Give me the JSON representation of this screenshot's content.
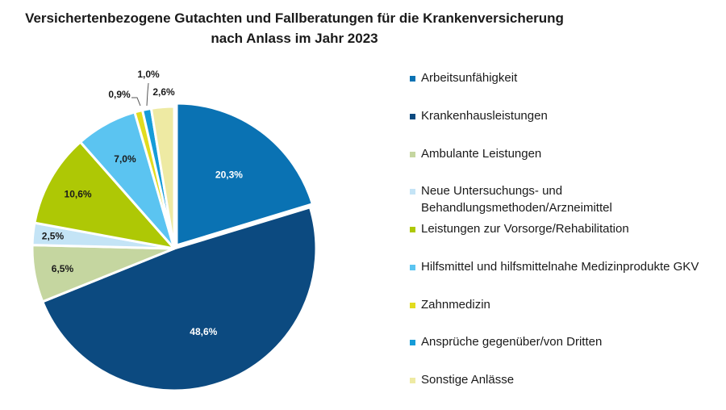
{
  "title_line1": "Versichertenbezogene Gutachten und Fallberatungen für die Krankenversicherung",
  "title_line2": "nach Anlass im Jahr 2023",
  "chart_data": {
    "type": "pie",
    "title": "Versichertenbezogene Gutachten und Fallberatungen für die Krankenversicherung nach Anlass im Jahr 2023",
    "legend_position": "right",
    "slices": [
      {
        "label": "Arbeitsunfähigkeit",
        "value": 20.3,
        "value_label": "20,3%",
        "color": "#0a72b3"
      },
      {
        "label": "Krankenhausleistungen",
        "value": 48.6,
        "value_label": "48,6%",
        "color": "#0c4a80"
      },
      {
        "label": "Ambulante Leistungen",
        "value": 6.5,
        "value_label": "6,5%",
        "color": "#c5d6a0"
      },
      {
        "label": "Neue Untersuchungs- und Behandlungsmethoden/Arzneimittel",
        "value": 2.5,
        "value_label": "2,5%",
        "color": "#c4e4f6"
      },
      {
        "label": "Leistungen zur Vorsorge/Rehabilitation",
        "value": 10.6,
        "value_label": "10,6%",
        "color": "#aec805"
      },
      {
        "label": "Hilfsmittel und hilfsmittelnahe Medizinprodukte GKV",
        "value": 7.0,
        "value_label": "7,0%",
        "color": "#5bc4f1"
      },
      {
        "label": "Zahnmedizin",
        "value": 0.9,
        "value_label": "0,9%",
        "color": "#e2dc1f"
      },
      {
        "label": "Ansprüche gegenüber/von Dritten",
        "value": 1.0,
        "value_label": "1,0%",
        "color": "#159cd8"
      },
      {
        "label": "Sonstige Anlässe",
        "value": 2.6,
        "value_label": "2,6%",
        "color": "#eeeaa3"
      }
    ]
  }
}
